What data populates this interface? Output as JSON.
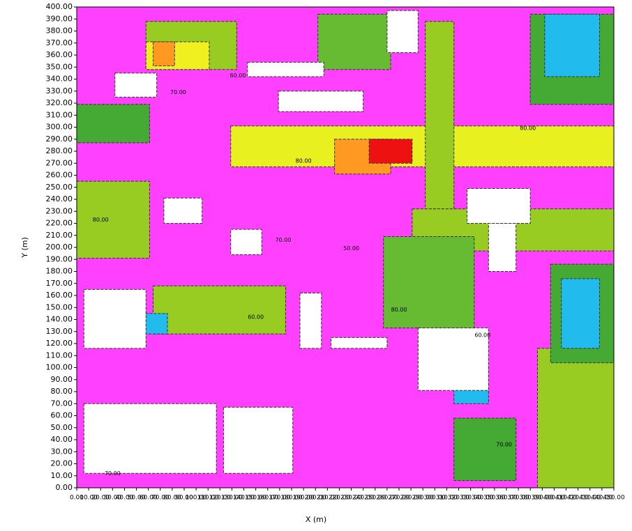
{
  "chart_data": {
    "type": "contour",
    "xlabel": "X (m)",
    "ylabel": "Y (m)",
    "background": "#ff40ff",
    "xlim": [
      0,
      450
    ],
    "ylim": [
      0,
      400
    ],
    "xticks": [
      {
        "value": 0,
        "label": "0.00"
      },
      {
        "value": 10,
        "label": "10.00"
      },
      {
        "value": 20,
        "label": "20.00"
      },
      {
        "value": 30,
        "label": "30.00"
      },
      {
        "value": 40,
        "label": "40.00"
      },
      {
        "value": 50,
        "label": "50.00"
      },
      {
        "value": 60,
        "label": "60.00"
      },
      {
        "value": 70,
        "label": "70.00"
      },
      {
        "value": 80,
        "label": "80.00"
      },
      {
        "value": 90,
        "label": "90.00"
      },
      {
        "value": 100,
        "label": "100.00"
      },
      {
        "value": 110,
        "label": "110.00"
      },
      {
        "value": 120,
        "label": "120.00"
      },
      {
        "value": 130,
        "label": "130.00"
      },
      {
        "value": 140,
        "label": "140.00"
      },
      {
        "value": 150,
        "label": "150.00"
      },
      {
        "value": 160,
        "label": "160.00"
      },
      {
        "value": 170,
        "label": "170.00"
      },
      {
        "value": 180,
        "label": "180.00"
      },
      {
        "value": 190,
        "label": "190.00"
      },
      {
        "value": 200,
        "label": "200.00"
      },
      {
        "value": 210,
        "label": "210.00"
      },
      {
        "value": 220,
        "label": "220.00"
      },
      {
        "value": 230,
        "label": "230.00"
      },
      {
        "value": 240,
        "label": "240.00"
      },
      {
        "value": 250,
        "label": "250.00"
      },
      {
        "value": 260,
        "label": "260.00"
      },
      {
        "value": 270,
        "label": "270.00"
      },
      {
        "value": 280,
        "label": "280.00"
      },
      {
        "value": 290,
        "label": "290.00"
      },
      {
        "value": 300,
        "label": "300.00"
      },
      {
        "value": 310,
        "label": "310.00"
      },
      {
        "value": 320,
        "label": "320.00"
      },
      {
        "value": 330,
        "label": "330.00"
      },
      {
        "value": 340,
        "label": "340.00"
      },
      {
        "value": 350,
        "label": "350.00"
      },
      {
        "value": 360,
        "label": "360.00"
      },
      {
        "value": 370,
        "label": "370.00"
      },
      {
        "value": 380,
        "label": "380.00"
      },
      {
        "value": 390,
        "label": "390.00"
      },
      {
        "value": 400,
        "label": "400.00"
      },
      {
        "value": 410,
        "label": "410.00"
      },
      {
        "value": 420,
        "label": "420.00"
      },
      {
        "value": 430,
        "label": "430.00"
      },
      {
        "value": 440,
        "label": "440.00"
      },
      {
        "value": 450,
        "label": "450.00"
      }
    ],
    "yticks": [
      {
        "value": 0,
        "label": "0.00"
      },
      {
        "value": 10,
        "label": "10.00"
      },
      {
        "value": 20,
        "label": "20.00"
      },
      {
        "value": 30,
        "label": "30.00"
      },
      {
        "value": 40,
        "label": "40.00"
      },
      {
        "value": 50,
        "label": "50.00"
      },
      {
        "value": 60,
        "label": "60.00"
      },
      {
        "value": 70,
        "label": "70.00"
      },
      {
        "value": 80,
        "label": "80.00"
      },
      {
        "value": 90,
        "label": "90.00"
      },
      {
        "value": 100,
        "label": "100.00"
      },
      {
        "value": 110,
        "label": "110.00"
      },
      {
        "value": 120,
        "label": "120.00"
      },
      {
        "value": 130,
        "label": "130.00"
      },
      {
        "value": 140,
        "label": "140.00"
      },
      {
        "value": 150,
        "label": "150.00"
      },
      {
        "value": 160,
        "label": "160.00"
      },
      {
        "value": 170,
        "label": "170.00"
      },
      {
        "value": 180,
        "label": "180.00"
      },
      {
        "value": 190,
        "label": "190.00"
      },
      {
        "value": 200,
        "label": "200.00"
      },
      {
        "value": 210,
        "label": "210.00"
      },
      {
        "value": 220,
        "label": "220.00"
      },
      {
        "value": 230,
        "label": "230.00"
      },
      {
        "value": 240,
        "label": "240.00"
      },
      {
        "value": 250,
        "label": "250.00"
      },
      {
        "value": 260,
        "label": "260.00"
      },
      {
        "value": 270,
        "label": "270.00"
      },
      {
        "value": 280,
        "label": "280.00"
      },
      {
        "value": 290,
        "label": "290.00"
      },
      {
        "value": 300,
        "label": "300.00"
      },
      {
        "value": 310,
        "label": "310.00"
      },
      {
        "value": 320,
        "label": "320.00"
      },
      {
        "value": 330,
        "label": "330.00"
      },
      {
        "value": 340,
        "label": "340.00"
      },
      {
        "value": 350,
        "label": "350.00"
      },
      {
        "value": 360,
        "label": "360.00"
      },
      {
        "value": 370,
        "label": "370.00"
      },
      {
        "value": 380,
        "label": "380.00"
      },
      {
        "value": 390,
        "label": "390.00"
      },
      {
        "value": 400,
        "label": "400.00"
      }
    ],
    "regions": [
      {
        "x0": 129,
        "x1": 450,
        "y0": 267,
        "y1": 301,
        "color": "#e8f020"
      },
      {
        "x0": 292,
        "x1": 316,
        "y0": 232,
        "y1": 388,
        "color": "#99cc22"
      },
      {
        "x0": 281,
        "x1": 450,
        "y0": 197,
        "y1": 232,
        "color": "#99cc22"
      },
      {
        "x0": 0,
        "x1": 61,
        "y0": 191,
        "y1": 255,
        "color": "#99cc22"
      },
      {
        "x0": 257,
        "x1": 333,
        "y0": 133,
        "y1": 209,
        "color": "#66bb33"
      },
      {
        "x0": 64,
        "x1": 175,
        "y0": 128,
        "y1": 168,
        "color": "#99cc22"
      },
      {
        "x0": 386,
        "x1": 450,
        "y0": 0,
        "y1": 116,
        "color": "#99cc22"
      },
      {
        "x0": 58,
        "x1": 134,
        "y0": 348,
        "y1": 388,
        "color": "#99cc22"
      },
      {
        "x0": 58,
        "x1": 111,
        "y0": 348,
        "y1": 371,
        "color": "#f0f020"
      },
      {
        "x0": 64,
        "x1": 82,
        "y0": 351,
        "y1": 371,
        "color": "#ff9922"
      },
      {
        "x0": 0,
        "x1": 61,
        "y0": 287,
        "y1": 319,
        "color": "#44aa33"
      },
      {
        "x0": 397,
        "x1": 450,
        "y0": 104,
        "y1": 186,
        "color": "#44aa33"
      },
      {
        "x0": 406,
        "x1": 438,
        "y0": 116,
        "y1": 174,
        "color": "#22bbee"
      },
      {
        "x0": 380,
        "x1": 450,
        "y0": 319,
        "y1": 394,
        "color": "#44aa33"
      },
      {
        "x0": 392,
        "x1": 438,
        "y0": 342,
        "y1": 394,
        "color": "#22bbee"
      },
      {
        "x0": 202,
        "x1": 263,
        "y0": 348,
        "y1": 394,
        "color": "#66bb33"
      },
      {
        "x0": 216,
        "x1": 263,
        "y0": 261,
        "y1": 290,
        "color": "#ff9922"
      },
      {
        "x0": 245,
        "x1": 281,
        "y0": 270,
        "y1": 290,
        "color": "#ee1111"
      },
      {
        "x0": 47,
        "x1": 76,
        "y0": 128,
        "y1": 145,
        "color": "#22bbee"
      },
      {
        "x0": 316,
        "x1": 345,
        "y0": 70,
        "y1": 104,
        "color": "#22bbee"
      },
      {
        "x0": 316,
        "x1": 368,
        "y0": 6,
        "y1": 58,
        "color": "#44aa33"
      },
      {
        "x0": 32,
        "x1": 67,
        "y0": 325,
        "y1": 345,
        "color": "#ffffff"
      },
      {
        "x0": 143,
        "x1": 207,
        "y0": 342,
        "y1": 354,
        "color": "#ffffff"
      },
      {
        "x0": 169,
        "x1": 240,
        "y0": 313,
        "y1": 330,
        "color": "#ffffff"
      },
      {
        "x0": 260,
        "x1": 286,
        "y0": 362,
        "y1": 397,
        "color": "#ffffff"
      },
      {
        "x0": 73,
        "x1": 105,
        "y0": 220,
        "y1": 241,
        "color": "#ffffff"
      },
      {
        "x0": 129,
        "x1": 155,
        "y0": 194,
        "y1": 215,
        "color": "#ffffff"
      },
      {
        "x0": 187,
        "x1": 205,
        "y0": 116,
        "y1": 162,
        "color": "#ffffff"
      },
      {
        "x0": 213,
        "x1": 260,
        "y0": 116,
        "y1": 125,
        "color": "#ffffff"
      },
      {
        "x0": 286,
        "x1": 345,
        "y0": 81,
        "y1": 133,
        "color": "#ffffff"
      },
      {
        "x0": 6,
        "x1": 117,
        "y0": 12,
        "y1": 70,
        "color": "#ffffff"
      },
      {
        "x0": 123,
        "x1": 181,
        "y0": 12,
        "y1": 67,
        "color": "#ffffff"
      },
      {
        "x0": 6,
        "x1": 58,
        "y0": 116,
        "y1": 165,
        "color": "#ffffff"
      },
      {
        "x0": 345,
        "x1": 368,
        "y0": 180,
        "y1": 220,
        "color": "#ffffff"
      },
      {
        "x0": 327,
        "x1": 380,
        "y0": 220,
        "y1": 249,
        "color": "#ffffff"
      }
    ],
    "annotations": [
      {
        "x": 85,
        "y": 329,
        "text": "70.00"
      },
      {
        "x": 135,
        "y": 343,
        "text": "60.00"
      },
      {
        "x": 173,
        "y": 206,
        "text": "70.00"
      },
      {
        "x": 230,
        "y": 199,
        "text": "50.00"
      },
      {
        "x": 150,
        "y": 142,
        "text": "60.00"
      },
      {
        "x": 270,
        "y": 148,
        "text": "80.00"
      },
      {
        "x": 340,
        "y": 127,
        "text": "60.00"
      },
      {
        "x": 378,
        "y": 299,
        "text": "80.00"
      },
      {
        "x": 190,
        "y": 272,
        "text": "80.00"
      },
      {
        "x": 20,
        "y": 223,
        "text": "80.00"
      },
      {
        "x": 358,
        "y": 36,
        "text": "70.00"
      },
      {
        "x": 30,
        "y": 12,
        "text": "70.00"
      }
    ]
  }
}
